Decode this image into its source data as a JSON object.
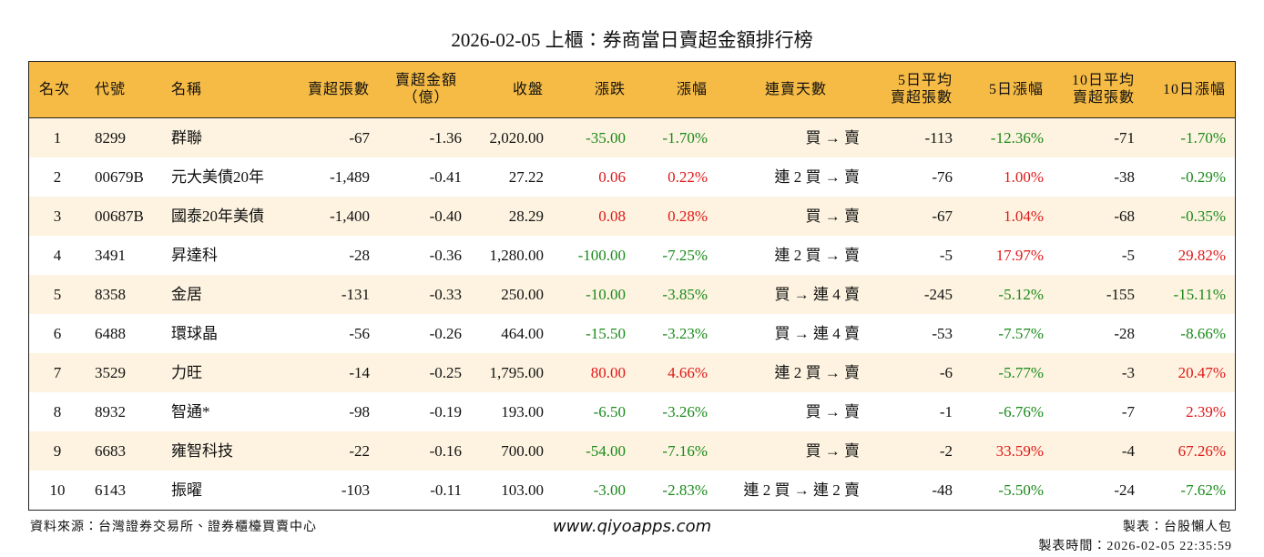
{
  "header": {
    "title": "2026-02-05 上櫃：券商當日賣超金額排行榜"
  },
  "table": {
    "columns": [
      "名次",
      "代號",
      "名稱",
      "賣超張數",
      "賣超金額\n（億）",
      "收盤",
      "漲跌",
      "漲幅",
      "連賣天數",
      "5日平均\n賣超張數",
      "5日漲幅",
      "10日平均\n賣超張數",
      "10日漲幅"
    ],
    "rows": [
      [
        "1",
        "8299",
        "群聯",
        "-67",
        "-1.36",
        "2,020.00",
        "-35.00",
        "-1.70%",
        "買 → 賣",
        "-113",
        "-12.36%",
        "-71",
        "-1.70%"
      ],
      [
        "2",
        "00679B",
        "元大美債20年",
        "-1,489",
        "-0.41",
        "27.22",
        "0.06",
        "0.22%",
        "連 2 買 → 賣",
        "-76",
        "1.00%",
        "-38",
        "-0.29%"
      ],
      [
        "3",
        "00687B",
        "國泰20年美債",
        "-1,400",
        "-0.40",
        "28.29",
        "0.08",
        "0.28%",
        "買 → 賣",
        "-67",
        "1.04%",
        "-68",
        "-0.35%"
      ],
      [
        "4",
        "3491",
        "昇達科",
        "-28",
        "-0.36",
        "1,280.00",
        "-100.00",
        "-7.25%",
        "連 2 買 → 賣",
        "-5",
        "17.97%",
        "-5",
        "29.82%"
      ],
      [
        "5",
        "8358",
        "金居",
        "-131",
        "-0.33",
        "250.00",
        "-10.00",
        "-3.85%",
        "買 → 連 4 賣",
        "-245",
        "-5.12%",
        "-155",
        "-15.11%"
      ],
      [
        "6",
        "6488",
        "環球晶",
        "-56",
        "-0.26",
        "464.00",
        "-15.50",
        "-3.23%",
        "買 → 連 4 賣",
        "-53",
        "-7.57%",
        "-28",
        "-8.66%"
      ],
      [
        "7",
        "3529",
        "力旺",
        "-14",
        "-0.25",
        "1,795.00",
        "80.00",
        "4.66%",
        "連 2 買 → 賣",
        "-6",
        "-5.77%",
        "-3",
        "20.47%"
      ],
      [
        "8",
        "8932",
        "智通*",
        "-98",
        "-0.19",
        "193.00",
        "-6.50",
        "-3.26%",
        "買 → 賣",
        "-1",
        "-6.76%",
        "-7",
        "2.39%"
      ],
      [
        "9",
        "6683",
        "雍智科技",
        "-22",
        "-0.16",
        "700.00",
        "-54.00",
        "-7.16%",
        "買 → 賣",
        "-2",
        "33.59%",
        "-4",
        "67.26%"
      ],
      [
        "10",
        "6143",
        "振曜",
        "-103",
        "-0.11",
        "103.00",
        "-3.00",
        "-2.83%",
        "連 2 買 → 連 2 賣",
        "-48",
        "-5.50%",
        "-24",
        "-7.62%"
      ]
    ]
  },
  "footer": {
    "source": "資料來源：台灣證券交易所、證券櫃檯買賣中心",
    "website": "www.qiyoapps.com",
    "maker": "製表：台股懶人包",
    "time": "製表時間：2026-02-05 22:35:59"
  }
}
